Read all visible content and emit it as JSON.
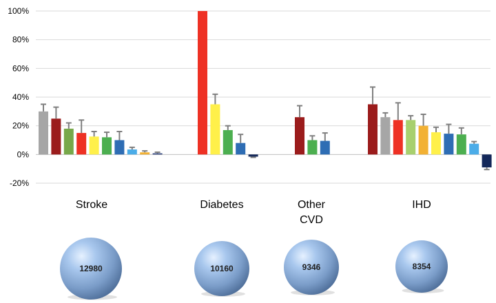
{
  "chart_data": {
    "type": "bar",
    "ylim": [
      -20,
      100
    ],
    "yticks": [
      {
        "value": -20,
        "label": "-20%"
      },
      {
        "value": 0,
        "label": "0%"
      },
      {
        "value": 20,
        "label": "20%"
      },
      {
        "value": 40,
        "label": "40%"
      },
      {
        "value": 60,
        "label": "60%"
      },
      {
        "value": 80,
        "label": "80%"
      },
      {
        "value": 100,
        "label": "100%"
      }
    ],
    "grid": true,
    "groups": [
      {
        "label_lines": [
          "Stroke"
        ],
        "bubble_value": "12980",
        "bars": [
          {
            "value": 30,
            "err": 5,
            "color": "#A6A6A6"
          },
          {
            "value": 25,
            "err": 8,
            "color": "#9B1C1C"
          },
          {
            "value": 18,
            "err": 4,
            "color": "#77A84A"
          },
          {
            "value": 15,
            "err": 9,
            "color": "#EE3124"
          },
          {
            "value": 12.5,
            "err": 3.5,
            "color": "#FFF04A"
          },
          {
            "value": 12,
            "err": 3.5,
            "color": "#4CAF50"
          },
          {
            "value": 10,
            "err": 6,
            "color": "#2E6DB4"
          },
          {
            "value": 3.5,
            "err": 1.5,
            "color": "#4BACE8"
          },
          {
            "value": 1.5,
            "err": 1,
            "color": "#F2B134"
          },
          {
            "value": 0.8,
            "err": 0.8,
            "color": "#2B3F7A"
          }
        ]
      },
      {
        "label_lines": [
          "Diabetes"
        ],
        "bubble_value": "10160",
        "bars": [
          {
            "value": 100,
            "err": 0,
            "color": "#EE3124"
          },
          {
            "value": 35,
            "err": 7,
            "color": "#FFF04A"
          },
          {
            "value": 17,
            "err": 3,
            "color": "#4CAF50"
          },
          {
            "value": 8,
            "err": 6,
            "color": "#2E6DB4"
          },
          {
            "value": -1.5,
            "err": 0.5,
            "color": "#14285A"
          }
        ]
      },
      {
        "label_lines": [
          "Other",
          "CVD"
        ],
        "bubble_value": "9346",
        "bars": [
          {
            "value": 26,
            "err": 8,
            "color": "#9B1C1C"
          },
          {
            "value": 10,
            "err": 3,
            "color": "#4CAF50"
          },
          {
            "value": 9.5,
            "err": 5.5,
            "color": "#2E6DB4"
          }
        ]
      },
      {
        "label_lines": [
          "IHD"
        ],
        "bubble_value": "8354",
        "bars": [
          {
            "value": 35,
            "err": 12,
            "color": "#9B1C1C"
          },
          {
            "value": 26,
            "err": 3,
            "color": "#A6A6A6"
          },
          {
            "value": 24,
            "err": 12,
            "color": "#EE3124"
          },
          {
            "value": 24,
            "err": 3,
            "color": "#A8D06E"
          },
          {
            "value": 20,
            "err": 8,
            "color": "#F2B134"
          },
          {
            "value": 15.5,
            "err": 3.5,
            "color": "#FFF04A"
          },
          {
            "value": 14.5,
            "err": 6.5,
            "color": "#2E6DB4"
          },
          {
            "value": 14,
            "err": 4.5,
            "color": "#4CAF50"
          },
          {
            "value": 7.5,
            "err": 1.5,
            "color": "#4BACE8"
          },
          {
            "value": -9,
            "err": 1.5,
            "color": "#14285A"
          }
        ]
      }
    ]
  }
}
